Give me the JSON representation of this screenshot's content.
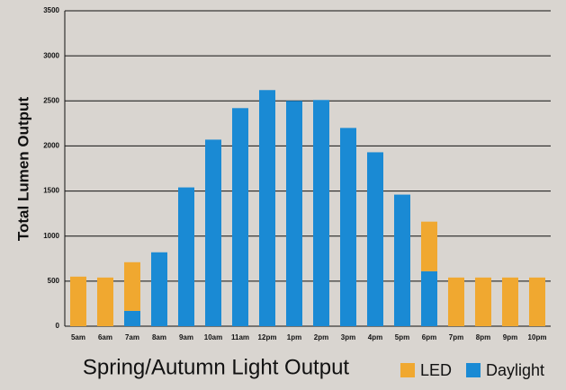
{
  "chart_data": {
    "type": "stacked-bar",
    "title": "Spring/Autumn Light Output",
    "y_label": "Total Lumen Output",
    "categories": [
      "5am",
      "6am",
      "7am",
      "8am",
      "9am",
      "10am",
      "11am",
      "12pm",
      "1pm",
      "2pm",
      "3pm",
      "4pm",
      "5pm",
      "6pm",
      "7pm",
      "8pm",
      "9pm",
      "10pm"
    ],
    "series": [
      {
        "name": "Daylight",
        "color": "#1a8ad4",
        "values": [
          0,
          0,
          170,
          820,
          1540,
          2070,
          2420,
          2620,
          2500,
          2510,
          2200,
          1930,
          1460,
          610,
          0,
          0,
          0,
          0
        ]
      },
      {
        "name": "LED",
        "color": "#f0a830",
        "values": [
          550,
          540,
          540,
          0,
          0,
          0,
          0,
          0,
          0,
          0,
          0,
          0,
          0,
          550,
          540,
          540,
          540,
          540
        ]
      }
    ],
    "legend_order": [
      1,
      0
    ],
    "ylim": [
      0,
      3500
    ],
    "yticks": [
      0,
      500,
      1000,
      1500,
      2000,
      2500,
      3000,
      3500
    ],
    "grid": true
  }
}
